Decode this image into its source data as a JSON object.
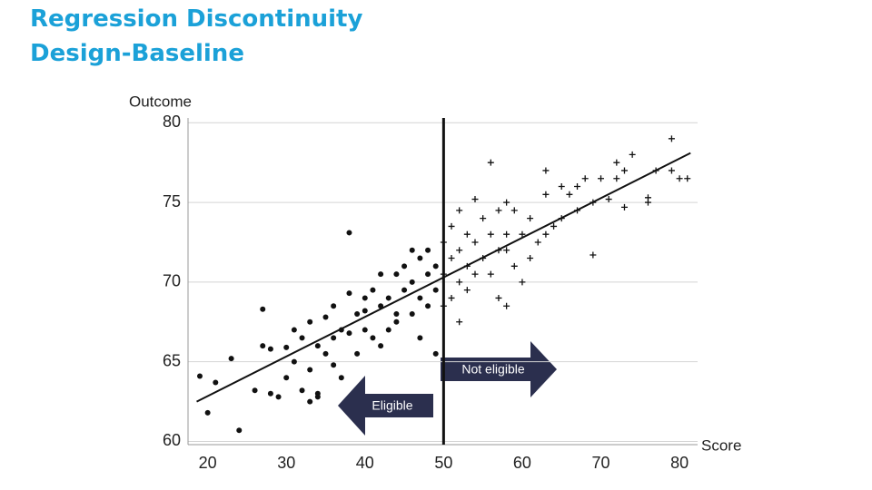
{
  "chart_data": {
    "type": "scatter",
    "title": "Regression Discontinuity Design-Baseline",
    "y_label": "Outcome",
    "x_label": "Score",
    "xlim": [
      17.5,
      82.3
    ],
    "ylim": [
      59.8,
      80.3
    ],
    "xticks": [
      20,
      30,
      40,
      50,
      60,
      70,
      80
    ],
    "yticks": [
      60,
      65,
      70,
      75,
      80
    ],
    "grid": true,
    "cutoff": 50,
    "fit_line": {
      "x": [
        18.6,
        81.4
      ],
      "y": [
        62.5,
        78.1
      ]
    },
    "annotations": [
      {
        "text": "Not eligible",
        "direction": "right"
      },
      {
        "text": "Eligible",
        "direction": "left"
      }
    ],
    "series": [
      {
        "marker": "dot",
        "color": "#111111",
        "x": [
          19,
          20,
          21,
          23,
          24,
          26,
          27,
          27,
          28,
          28,
          29,
          30,
          30,
          31,
          31,
          32,
          32,
          33,
          33,
          34,
          34,
          35,
          35,
          36,
          36,
          37,
          37,
          38,
          38,
          38,
          39,
          39,
          40,
          40,
          41,
          41,
          42,
          42,
          43,
          43,
          44,
          44,
          45,
          45,
          46,
          46,
          47,
          47,
          47,
          48,
          48,
          48,
          49,
          49,
          49,
          46,
          44,
          42,
          40,
          36,
          34,
          33
        ],
        "values": [
          64.1,
          61.8,
          63.7,
          65.2,
          60.7,
          63.2,
          68.3,
          66.0,
          65.8,
          63.0,
          62.8,
          65.9,
          64.0,
          67.0,
          65.0,
          63.2,
          66.5,
          67.5,
          64.5,
          66.0,
          63.0,
          65.5,
          67.8,
          68.5,
          66.5,
          67.0,
          64.0,
          69.3,
          66.8,
          73.1,
          68.0,
          65.5,
          69.0,
          67.0,
          69.5,
          66.5,
          68.5,
          70.5,
          69.0,
          67.0,
          70.5,
          68.0,
          71.0,
          69.5,
          70.0,
          68.0,
          71.5,
          69.0,
          66.5,
          70.5,
          72.0,
          68.5,
          71.0,
          69.5,
          65.5,
          72.0,
          67.5,
          66.0,
          68.2,
          64.8,
          62.8,
          62.5
        ]
      },
      {
        "marker": "plus",
        "color": "#111111",
        "x": [
          50,
          50,
          50,
          51,
          51,
          51,
          52,
          52,
          52,
          52,
          53,
          53,
          53,
          54,
          54,
          54,
          55,
          55,
          56,
          56,
          57,
          57,
          57,
          58,
          58,
          58,
          59,
          59,
          60,
          60,
          61,
          61,
          62,
          63,
          63,
          63,
          64,
          65,
          66,
          67,
          67,
          68,
          69,
          69,
          70,
          71,
          72,
          72,
          73,
          73,
          74,
          76,
          76,
          77,
          79,
          79,
          80,
          81,
          56,
          58,
          65
        ],
        "values": [
          72.5,
          70.5,
          68.5,
          73.5,
          71.5,
          69.0,
          74.5,
          72.0,
          70.0,
          67.5,
          73.0,
          71.0,
          69.5,
          75.2,
          72.5,
          70.5,
          74.0,
          71.5,
          73.0,
          70.5,
          74.5,
          72.0,
          69.0,
          75.0,
          73.0,
          68.5,
          74.5,
          71.0,
          73.0,
          70.0,
          74.0,
          71.5,
          72.5,
          75.5,
          73.0,
          77.0,
          73.5,
          76.0,
          75.5,
          74.5,
          76.0,
          76.5,
          75.0,
          71.7,
          76.5,
          75.2,
          77.5,
          76.5,
          77.0,
          74.7,
          78.0,
          75.0,
          75.3,
          77.0,
          77.0,
          79.0,
          76.5,
          76.5,
          77.5,
          72.0,
          74.0
        ]
      }
    ]
  }
}
